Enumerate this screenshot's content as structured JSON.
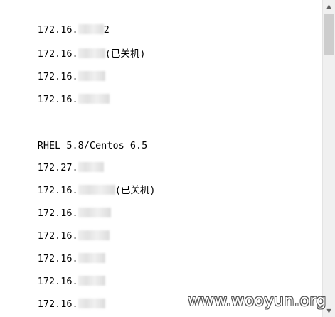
{
  "lines": [
    {
      "text": "172.16.",
      "suffix": "2"
    },
    {
      "text": "172.16.",
      "suffix": "(已关机)"
    },
    {
      "text": "172.16.",
      "suffix": ""
    },
    {
      "text": "172.16.",
      "suffix": ""
    },
    {
      "text": "",
      "suffix": ""
    },
    {
      "text": "RHEL 5.8/Centos 6.5",
      "suffix": ""
    },
    {
      "text": "172.27.",
      "suffix": ""
    },
    {
      "text": "172.16.",
      "suffix": "(已关机)"
    },
    {
      "text": "172.16.",
      "suffix": ""
    },
    {
      "text": "172.16.",
      "suffix": ""
    },
    {
      "text": "172.16.",
      "suffix": ""
    },
    {
      "text": "172.16.",
      "suffix": ""
    },
    {
      "text": "172.16.",
      "suffix": ""
    }
  ],
  "scrollbar": {
    "up_icon": "scroll-up-arrow-icon",
    "down_icon": "scroll-down-arrow-icon",
    "up_glyph": "▲",
    "down_glyph": "▼"
  },
  "watermark": "www.wooyun.org"
}
